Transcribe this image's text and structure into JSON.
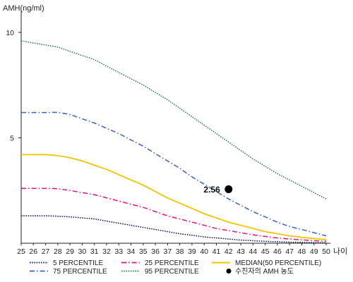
{
  "chart_data": {
    "type": "line",
    "ylabel": "AMH(ng/ml)",
    "xlabel": "나이",
    "xlim": [
      25,
      50
    ],
    "ylim": [
      0,
      10.8
    ],
    "yticks": [
      5,
      10
    ],
    "x": [
      25,
      26,
      27,
      28,
      29,
      30,
      31,
      32,
      33,
      34,
      35,
      36,
      37,
      38,
      39,
      40,
      41,
      42,
      43,
      44,
      45,
      46,
      47,
      48,
      49,
      50
    ],
    "series": [
      {
        "name": "95 PERCENTILE",
        "color": "#2e7d4f",
        "style": "dotted",
        "values": [
          9.6,
          9.5,
          9.4,
          9.3,
          9.1,
          8.9,
          8.7,
          8.4,
          8.1,
          7.8,
          7.5,
          7.15,
          6.8,
          6.4,
          6.0,
          5.6,
          5.2,
          4.8,
          4.4,
          4.0,
          3.65,
          3.3,
          3.0,
          2.7,
          2.4,
          2.1
        ]
      },
      {
        "name": "75 PERCENTILE",
        "color": "#3a5fcd",
        "style": "dash-dot",
        "values": [
          6.2,
          6.2,
          6.2,
          6.2,
          6.1,
          5.9,
          5.7,
          5.45,
          5.2,
          4.9,
          4.6,
          4.25,
          3.9,
          3.55,
          3.15,
          2.8,
          2.45,
          2.1,
          1.8,
          1.5,
          1.25,
          1.0,
          0.8,
          0.65,
          0.5,
          0.35
        ]
      },
      {
        "name": "MEDIAN(50 PERCENTILE)",
        "color": "#f2c500",
        "style": "solid",
        "values": [
          4.2,
          4.2,
          4.2,
          4.15,
          4.05,
          3.9,
          3.7,
          3.5,
          3.25,
          3.0,
          2.75,
          2.45,
          2.15,
          1.9,
          1.65,
          1.4,
          1.2,
          1.0,
          0.85,
          0.7,
          0.55,
          0.45,
          0.35,
          0.28,
          0.22,
          0.17
        ]
      },
      {
        "name": "25 PERCENTILE",
        "color": "#e0157a",
        "style": "dash-dot",
        "values": [
          2.6,
          2.6,
          2.6,
          2.58,
          2.5,
          2.4,
          2.3,
          2.15,
          2.0,
          1.85,
          1.7,
          1.5,
          1.3,
          1.15,
          1.0,
          0.85,
          0.7,
          0.6,
          0.5,
          0.4,
          0.32,
          0.25,
          0.2,
          0.16,
          0.12,
          0.09
        ]
      },
      {
        "name": "5 PERCENTILE",
        "color": "#0a1a5c",
        "style": "dotted",
        "values": [
          1.3,
          1.3,
          1.3,
          1.28,
          1.25,
          1.2,
          1.15,
          1.05,
          0.95,
          0.85,
          0.75,
          0.65,
          0.55,
          0.45,
          0.38,
          0.3,
          0.25,
          0.2,
          0.15,
          0.12,
          0.09,
          0.07,
          0.05,
          0.04,
          0.03,
          0.02
        ]
      }
    ],
    "point": {
      "name": "수진자의 AMH 농도",
      "x": 42,
      "y": 2.56,
      "label": "2.56",
      "color": "#000000"
    },
    "legend": {
      "placement": "bottom",
      "items": [
        {
          "label": "5 PERCENTILE",
          "series": "5 PERCENTILE"
        },
        {
          "label": "25 PERCENTILE",
          "series": "25 PERCENTILE"
        },
        {
          "label": "MEDIAN(50 PERCENTILE)",
          "series": "MEDIAN(50 PERCENTILE)"
        },
        {
          "label": "75 PERCENTILE",
          "series": "75 PERCENTILE"
        },
        {
          "label": "95 PERCENTILE",
          "series": "95 PERCENTILE"
        },
        {
          "label": "수진자의 AMH 농도",
          "series": "point"
        }
      ]
    },
    "grid": false
  }
}
